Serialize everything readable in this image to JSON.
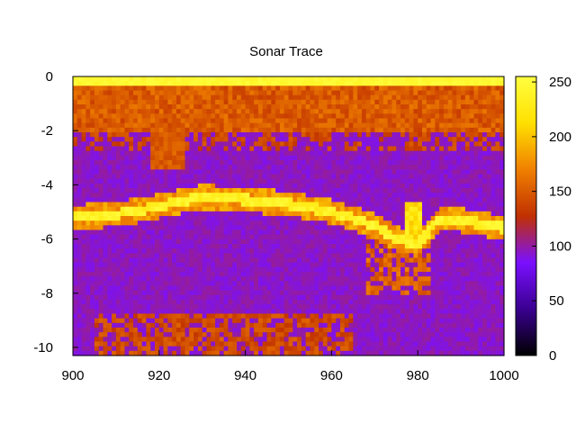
{
  "chart_data": {
    "type": "heatmap",
    "title": "Sonar Trace",
    "xlabel": "",
    "ylabel": "",
    "xlim": [
      900,
      1000
    ],
    "ylim": [
      -10.3,
      0
    ],
    "x_ticks": [
      900,
      920,
      940,
      960,
      980,
      1000
    ],
    "y_ticks": [
      0,
      -2,
      -4,
      -6,
      -8,
      -10
    ],
    "colorbar": {
      "range": [
        0,
        255
      ],
      "ticks": [
        0,
        50,
        100,
        150,
        200,
        250
      ],
      "palette": [
        "#000000",
        "#3a0090",
        "#7a10ff",
        "#c03000",
        "#f08000",
        "#ffe000",
        "#ffff40"
      ]
    },
    "grid": false,
    "features": {
      "surface_band": {
        "depth_top": 0,
        "depth_bottom": -0.35,
        "intensity": 240
      },
      "near_surface_clutter": {
        "depth_bottom": -2.0,
        "intensity": 145
      },
      "seabed": [
        {
          "x": 900,
          "depth": -5.2
        },
        {
          "x": 910,
          "depth": -5.1
        },
        {
          "x": 920,
          "depth": -4.8
        },
        {
          "x": 930,
          "depth": -4.45
        },
        {
          "x": 940,
          "depth": -4.55
        },
        {
          "x": 950,
          "depth": -4.7
        },
        {
          "x": 960,
          "depth": -5.0
        },
        {
          "x": 970,
          "depth": -5.5
        },
        {
          "x": 975,
          "depth": -6.0
        },
        {
          "x": 980,
          "depth": -6.2
        },
        {
          "x": 985,
          "depth": -5.3
        },
        {
          "x": 990,
          "depth": -5.3
        },
        {
          "x": 1000,
          "depth": -5.6
        }
      ],
      "deep_returns": {
        "depth_top": -8.8,
        "depth_bottom": -10.3,
        "x_from": 905,
        "x_to": 965,
        "intensity": 140
      },
      "background_intensity": 95
    }
  }
}
